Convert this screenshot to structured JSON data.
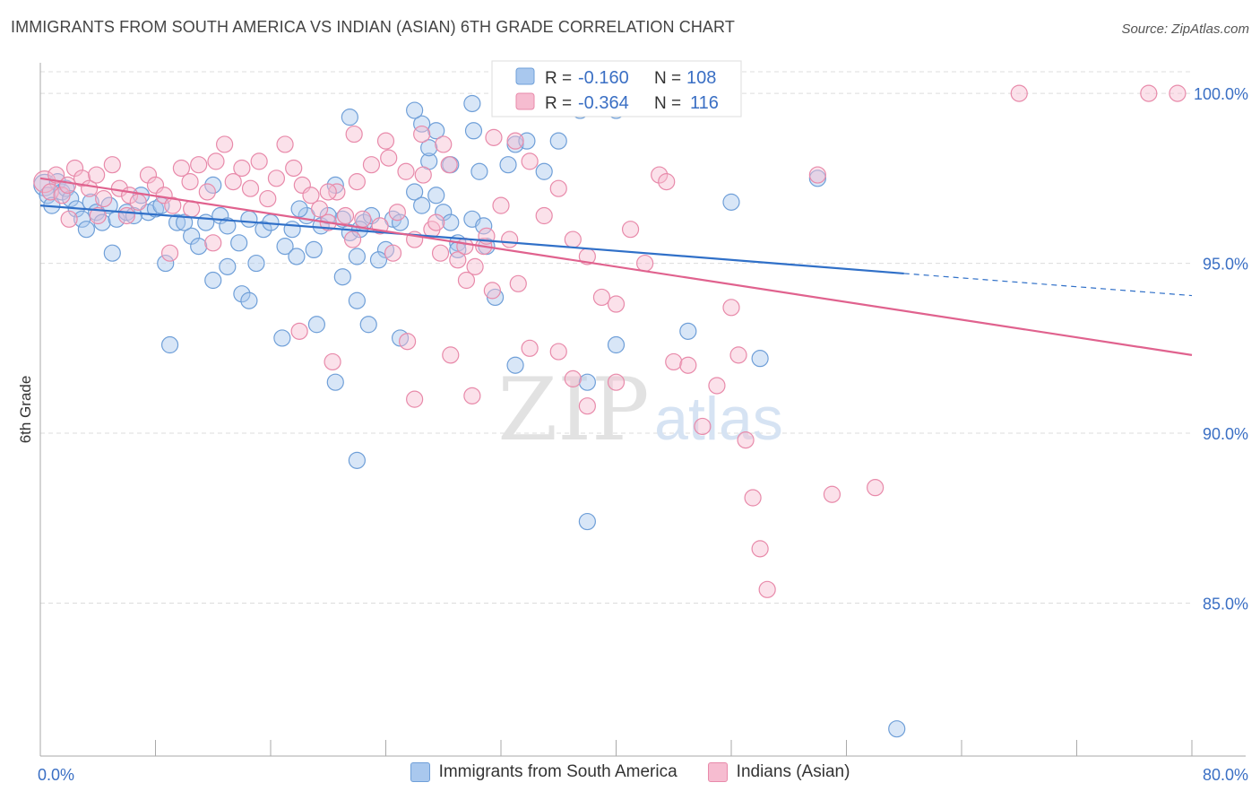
{
  "title": "IMMIGRANTS FROM SOUTH AMERICA VS INDIAN (ASIAN) 6TH GRADE CORRELATION CHART",
  "source": "Source: ZipAtlas.com",
  "watermark": {
    "zip": "ZIP",
    "atlas": "atlas"
  },
  "colors": {
    "blue_fill": "#a9c8ee",
    "blue_stroke": "#6f9fd8",
    "blue_line": "#3070c8",
    "pink_fill": "#f6bcd0",
    "pink_stroke": "#e88aaa",
    "pink_line": "#e0628e",
    "axis_label": "#3a6fc4",
    "grid": "#dcdcdc"
  },
  "legend": {
    "r_label": "R =",
    "n_label": "N =",
    "series": [
      {
        "r": "-0.160",
        "n": "108"
      },
      {
        "r": "-0.364",
        "n": "116"
      }
    ]
  },
  "chart_data": {
    "type": "scatter",
    "title": "IMMIGRANTS FROM SOUTH AMERICA VS INDIAN (ASIAN) 6TH GRADE CORRELATION CHART",
    "xlabel": "",
    "ylabel": "6th Grade",
    "xlim": [
      0,
      80
    ],
    "ylim": [
      80.5,
      100.9
    ],
    "x_tick_labels": [
      "0.0%",
      "80.0%"
    ],
    "y_ticks": [
      85,
      90,
      95,
      100
    ],
    "y_tick_labels": [
      "85.0%",
      "90.0%",
      "95.0%",
      "100.0%"
    ],
    "series": [
      {
        "name": "Immigrants from South America",
        "color": "blue",
        "trend": {
          "x0": 0,
          "y0": 96.7,
          "x1": 60,
          "y1": 94.7,
          "dash_to_x": 80,
          "dash_to_y": 94.05
        },
        "points": [
          [
            0.3,
            97.3
          ],
          [
            0.5,
            97.0
          ],
          [
            0.8,
            96.7
          ],
          [
            1.2,
            97.4
          ],
          [
            1.5,
            97.1
          ],
          [
            1.8,
            97.2
          ],
          [
            2.1,
            96.9
          ],
          [
            2.5,
            96.6
          ],
          [
            2.9,
            96.3
          ],
          [
            3.2,
            96.0
          ],
          [
            3.5,
            96.8
          ],
          [
            3.9,
            96.5
          ],
          [
            4.3,
            96.2
          ],
          [
            4.8,
            96.7
          ],
          [
            5.3,
            96.3
          ],
          [
            6.0,
            96.5
          ],
          [
            5.0,
            95.3
          ],
          [
            7.0,
            97.0
          ],
          [
            7.5,
            96.5
          ],
          [
            8.0,
            96.6
          ],
          [
            8.4,
            96.7
          ],
          [
            9.5,
            96.2
          ],
          [
            10.5,
            95.8
          ],
          [
            11.0,
            95.5
          ],
          [
            11.5,
            96.2
          ],
          [
            12.0,
            97.3
          ],
          [
            12.5,
            96.4
          ],
          [
            13.0,
            96.1
          ],
          [
            13.8,
            95.6
          ],
          [
            14.5,
            96.3
          ],
          [
            15.5,
            96.0
          ],
          [
            16.0,
            96.2
          ],
          [
            17.0,
            95.5
          ],
          [
            17.5,
            96.0
          ],
          [
            17.8,
            95.2
          ],
          [
            18.5,
            96.4
          ],
          [
            19.5,
            96.1
          ],
          [
            19.0,
            95.4
          ],
          [
            20.5,
            97.3
          ],
          [
            21.0,
            96.3
          ],
          [
            21.5,
            95.9
          ],
          [
            22.5,
            96.2
          ],
          [
            23.0,
            96.4
          ],
          [
            24.0,
            95.4
          ],
          [
            24.5,
            96.3
          ],
          [
            25.0,
            96.2
          ],
          [
            26.0,
            97.1
          ],
          [
            26.5,
            96.7
          ],
          [
            27.5,
            97.0
          ],
          [
            28.0,
            96.5
          ],
          [
            28.5,
            96.2
          ],
          [
            29.0,
            95.6
          ],
          [
            30.0,
            96.3
          ],
          [
            30.8,
            96.1
          ],
          [
            31.0,
            95.5
          ],
          [
            31.6,
            94.0
          ],
          [
            32.5,
            97.9
          ],
          [
            33.0,
            98.5
          ],
          [
            33.8,
            98.6
          ],
          [
            35.0,
            97.7
          ],
          [
            36.0,
            98.6
          ],
          [
            37.5,
            99.5
          ],
          [
            38.5,
            99.6
          ],
          [
            40.0,
            99.5
          ],
          [
            26.5,
            99.1
          ],
          [
            27.5,
            98.9
          ],
          [
            28.5,
            97.9
          ],
          [
            30.5,
            97.7
          ],
          [
            30.1,
            98.9
          ],
          [
            27.0,
            98.0
          ],
          [
            29.0,
            95.4
          ],
          [
            21.5,
            99.3
          ],
          [
            18.0,
            96.6
          ],
          [
            15.0,
            95.0
          ],
          [
            13.0,
            94.9
          ],
          [
            12.0,
            94.5
          ],
          [
            14.0,
            94.1
          ],
          [
            14.5,
            93.9
          ],
          [
            9.0,
            92.6
          ],
          [
            16.8,
            92.8
          ],
          [
            20.0,
            96.4
          ],
          [
            22.0,
            95.2
          ],
          [
            23.5,
            95.1
          ],
          [
            21.0,
            94.6
          ],
          [
            22.0,
            93.9
          ],
          [
            22.8,
            93.2
          ],
          [
            19.2,
            93.2
          ],
          [
            25.0,
            92.8
          ],
          [
            20.5,
            91.5
          ],
          [
            33.0,
            92.0
          ],
          [
            40.0,
            92.6
          ],
          [
            38.0,
            91.5
          ],
          [
            50.0,
            92.2
          ],
          [
            45.0,
            93.0
          ],
          [
            48.0,
            96.8
          ],
          [
            54.0,
            97.5
          ],
          [
            30.0,
            99.7
          ],
          [
            32.0,
            99.8
          ],
          [
            34.0,
            99.6
          ],
          [
            26.0,
            99.5
          ],
          [
            22.0,
            89.2
          ],
          [
            38.0,
            87.4
          ],
          [
            59.5,
            81.3
          ],
          [
            27.0,
            98.4
          ],
          [
            22.2,
            96.0
          ],
          [
            10.0,
            96.2
          ],
          [
            6.5,
            96.4
          ],
          [
            8.7,
            95.0
          ]
        ]
      },
      {
        "name": "Indians (Asian)",
        "color": "pink",
        "trend": {
          "x0": 0,
          "y0": 97.5,
          "x1": 80,
          "y1": 92.3
        },
        "points": [
          [
            0.3,
            97.4
          ],
          [
            0.7,
            97.1
          ],
          [
            1.1,
            97.6
          ],
          [
            1.5,
            97.0
          ],
          [
            1.9,
            97.3
          ],
          [
            2.4,
            97.8
          ],
          [
            2.9,
            97.5
          ],
          [
            3.4,
            97.2
          ],
          [
            3.9,
            97.6
          ],
          [
            4.4,
            96.9
          ],
          [
            5.0,
            97.9
          ],
          [
            5.5,
            97.2
          ],
          [
            6.2,
            97.0
          ],
          [
            6.8,
            96.8
          ],
          [
            7.5,
            97.6
          ],
          [
            8.0,
            97.3
          ],
          [
            8.6,
            97.0
          ],
          [
            9.2,
            96.7
          ],
          [
            9.8,
            97.8
          ],
          [
            10.4,
            97.4
          ],
          [
            11.0,
            97.9
          ],
          [
            11.6,
            97.1
          ],
          [
            12.2,
            98.0
          ],
          [
            12.8,
            98.5
          ],
          [
            13.4,
            97.4
          ],
          [
            14.0,
            97.8
          ],
          [
            14.6,
            97.2
          ],
          [
            15.2,
            98.0
          ],
          [
            15.8,
            96.9
          ],
          [
            16.4,
            97.5
          ],
          [
            17.0,
            98.5
          ],
          [
            17.6,
            97.8
          ],
          [
            18.2,
            97.3
          ],
          [
            18.8,
            97.0
          ],
          [
            19.4,
            96.6
          ],
          [
            20.0,
            96.2
          ],
          [
            20.6,
            97.1
          ],
          [
            21.2,
            96.4
          ],
          [
            21.8,
            98.8
          ],
          [
            22.4,
            96.3
          ],
          [
            23.0,
            97.9
          ],
          [
            23.6,
            96.1
          ],
          [
            24.2,
            98.1
          ],
          [
            24.8,
            96.5
          ],
          [
            25.4,
            97.7
          ],
          [
            26.0,
            95.7
          ],
          [
            26.6,
            97.6
          ],
          [
            27.2,
            96.0
          ],
          [
            27.8,
            95.3
          ],
          [
            28.4,
            97.9
          ],
          [
            29.0,
            95.1
          ],
          [
            29.6,
            94.5
          ],
          [
            30.2,
            94.9
          ],
          [
            30.8,
            95.5
          ],
          [
            31.4,
            94.2
          ],
          [
            32.0,
            96.7
          ],
          [
            32.6,
            95.7
          ],
          [
            33.2,
            94.4
          ],
          [
            34.0,
            98.0
          ],
          [
            35.0,
            96.4
          ],
          [
            36.0,
            97.2
          ],
          [
            37.0,
            95.7
          ],
          [
            38.0,
            95.2
          ],
          [
            39.0,
            94.0
          ],
          [
            40.0,
            93.8
          ],
          [
            41.0,
            96.0
          ],
          [
            42.0,
            95.0
          ],
          [
            43.0,
            97.6
          ],
          [
            43.5,
            97.4
          ],
          [
            44.0,
            92.1
          ],
          [
            45.0,
            92.0
          ],
          [
            46.0,
            90.2
          ],
          [
            47.0,
            91.4
          ],
          [
            48.0,
            93.7
          ],
          [
            48.5,
            92.3
          ],
          [
            49.0,
            89.8
          ],
          [
            49.5,
            88.1
          ],
          [
            50.0,
            86.6
          ],
          [
            50.5,
            85.4
          ],
          [
            55.0,
            88.2
          ],
          [
            58.0,
            88.4
          ],
          [
            54.0,
            97.6
          ],
          [
            68.0,
            100.0
          ],
          [
            77.0,
            100.0
          ],
          [
            79.0,
            100.0
          ],
          [
            47.0,
            100.0
          ],
          [
            35.0,
            100.0
          ],
          [
            33.0,
            98.6
          ],
          [
            31.5,
            98.7
          ],
          [
            28.0,
            98.5
          ],
          [
            26.5,
            98.8
          ],
          [
            24.0,
            98.6
          ],
          [
            22.0,
            97.4
          ],
          [
            20.0,
            97.1
          ],
          [
            18.0,
            93.0
          ],
          [
            20.3,
            92.1
          ],
          [
            25.5,
            92.7
          ],
          [
            28.5,
            92.3
          ],
          [
            30.0,
            91.1
          ],
          [
            34.0,
            92.5
          ],
          [
            36.0,
            92.4
          ],
          [
            37.0,
            91.6
          ],
          [
            38.0,
            90.8
          ],
          [
            40.0,
            91.5
          ],
          [
            26.0,
            91.0
          ],
          [
            31.0,
            95.8
          ],
          [
            29.5,
            95.5
          ],
          [
            27.5,
            96.2
          ],
          [
            24.5,
            95.3
          ],
          [
            21.7,
            95.7
          ],
          [
            10.5,
            96.6
          ],
          [
            9.0,
            95.3
          ],
          [
            4.0,
            96.4
          ],
          [
            6.0,
            96.4
          ],
          [
            2.0,
            96.3
          ],
          [
            12.0,
            95.6
          ]
        ]
      }
    ]
  },
  "bottom_legend": {
    "series_a": "Immigrants from South America",
    "series_b": "Indians (Asian)"
  }
}
